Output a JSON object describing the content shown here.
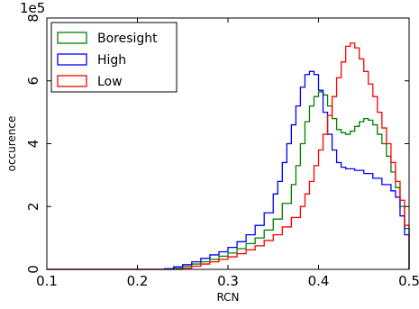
{
  "chart_data": {
    "type": "line",
    "subtype": "step-histogram",
    "title": "",
    "xlabel": "RCN",
    "ylabel": "occurence",
    "y_offset_label": "1e5",
    "y_scale": 100000,
    "xlim": [
      0.1,
      0.5
    ],
    "ylim": [
      0,
      8
    ],
    "x_ticks": [
      0.1,
      0.2,
      0.3,
      0.4,
      0.5
    ],
    "x_tick_labels": [
      "0.1",
      "0.2",
      "0.3",
      "0.4",
      "0.5"
    ],
    "y_ticks": [
      0,
      2,
      4,
      6,
      8
    ],
    "y_tick_labels": [
      "0",
      "2",
      "4",
      "6",
      "8"
    ],
    "grid": false,
    "legend_position": "top-left",
    "series": [
      {
        "name": "Boresight",
        "color": "#007f00",
        "points": [
          [
            0.1,
            0.0
          ],
          [
            0.22,
            0.0
          ],
          [
            0.24,
            0.03
          ],
          [
            0.25,
            0.1
          ],
          [
            0.26,
            0.17
          ],
          [
            0.27,
            0.24
          ],
          [
            0.28,
            0.32
          ],
          [
            0.29,
            0.42
          ],
          [
            0.3,
            0.52
          ],
          [
            0.31,
            0.66
          ],
          [
            0.32,
            0.82
          ],
          [
            0.33,
            1.0
          ],
          [
            0.34,
            1.25
          ],
          [
            0.35,
            1.6
          ],
          [
            0.36,
            2.1
          ],
          [
            0.37,
            2.7
          ],
          [
            0.375,
            3.3
          ],
          [
            0.38,
            4.0
          ],
          [
            0.385,
            4.7
          ],
          [
            0.39,
            5.2
          ],
          [
            0.395,
            5.5
          ],
          [
            0.4,
            5.65
          ],
          [
            0.405,
            5.55
          ],
          [
            0.41,
            5.2
          ],
          [
            0.415,
            4.8
          ],
          [
            0.42,
            4.45
          ],
          [
            0.425,
            4.35
          ],
          [
            0.43,
            4.3
          ],
          [
            0.435,
            4.4
          ],
          [
            0.44,
            4.55
          ],
          [
            0.445,
            4.7
          ],
          [
            0.45,
            4.8
          ],
          [
            0.455,
            4.75
          ],
          [
            0.46,
            4.6
          ],
          [
            0.465,
            4.3
          ],
          [
            0.47,
            4.0
          ],
          [
            0.475,
            3.6
          ],
          [
            0.48,
            3.1
          ],
          [
            0.485,
            2.6
          ],
          [
            0.49,
            2.0
          ],
          [
            0.495,
            1.3
          ],
          [
            0.5,
            0.3
          ]
        ]
      },
      {
        "name": "High",
        "color": "#0000ff",
        "points": [
          [
            0.1,
            0.0
          ],
          [
            0.22,
            0.0
          ],
          [
            0.23,
            0.02
          ],
          [
            0.24,
            0.08
          ],
          [
            0.25,
            0.15
          ],
          [
            0.26,
            0.24
          ],
          [
            0.27,
            0.35
          ],
          [
            0.28,
            0.46
          ],
          [
            0.29,
            0.56
          ],
          [
            0.3,
            0.7
          ],
          [
            0.31,
            0.88
          ],
          [
            0.32,
            1.1
          ],
          [
            0.33,
            1.4
          ],
          [
            0.34,
            1.8
          ],
          [
            0.35,
            2.4
          ],
          [
            0.355,
            2.8
          ],
          [
            0.36,
            3.4
          ],
          [
            0.365,
            4.0
          ],
          [
            0.37,
            4.6
          ],
          [
            0.375,
            5.2
          ],
          [
            0.38,
            5.8
          ],
          [
            0.385,
            6.2
          ],
          [
            0.39,
            6.3
          ],
          [
            0.395,
            6.2
          ],
          [
            0.4,
            5.7
          ],
          [
            0.405,
            5.0
          ],
          [
            0.41,
            4.3
          ],
          [
            0.415,
            3.8
          ],
          [
            0.42,
            3.4
          ],
          [
            0.425,
            3.25
          ],
          [
            0.43,
            3.2
          ],
          [
            0.44,
            3.15
          ],
          [
            0.45,
            3.05
          ],
          [
            0.46,
            2.9
          ],
          [
            0.47,
            2.7
          ],
          [
            0.48,
            2.5
          ],
          [
            0.485,
            2.3
          ],
          [
            0.49,
            1.7
          ],
          [
            0.495,
            1.1
          ],
          [
            0.5,
            0.3
          ]
        ]
      },
      {
        "name": "Low",
        "color": "#ff0000",
        "points": [
          [
            0.1,
            0.0
          ],
          [
            0.24,
            0.0
          ],
          [
            0.25,
            0.04
          ],
          [
            0.26,
            0.1
          ],
          [
            0.27,
            0.17
          ],
          [
            0.28,
            0.24
          ],
          [
            0.29,
            0.32
          ],
          [
            0.3,
            0.4
          ],
          [
            0.31,
            0.5
          ],
          [
            0.32,
            0.62
          ],
          [
            0.33,
            0.75
          ],
          [
            0.34,
            0.92
          ],
          [
            0.35,
            1.1
          ],
          [
            0.36,
            1.35
          ],
          [
            0.37,
            1.65
          ],
          [
            0.38,
            2.0
          ],
          [
            0.385,
            2.4
          ],
          [
            0.39,
            2.8
          ],
          [
            0.395,
            3.3
          ],
          [
            0.4,
            3.8
          ],
          [
            0.405,
            4.3
          ],
          [
            0.41,
            4.9
          ],
          [
            0.415,
            5.5
          ],
          [
            0.42,
            6.1
          ],
          [
            0.425,
            6.6
          ],
          [
            0.43,
            7.1
          ],
          [
            0.435,
            7.2
          ],
          [
            0.44,
            7.05
          ],
          [
            0.445,
            6.7
          ],
          [
            0.45,
            6.3
          ],
          [
            0.455,
            5.9
          ],
          [
            0.46,
            5.5
          ],
          [
            0.465,
            5.0
          ],
          [
            0.47,
            4.5
          ],
          [
            0.475,
            4.0
          ],
          [
            0.48,
            3.4
          ],
          [
            0.485,
            2.8
          ],
          [
            0.49,
            2.2
          ],
          [
            0.495,
            1.4
          ],
          [
            0.5,
            0.3
          ]
        ]
      }
    ]
  }
}
